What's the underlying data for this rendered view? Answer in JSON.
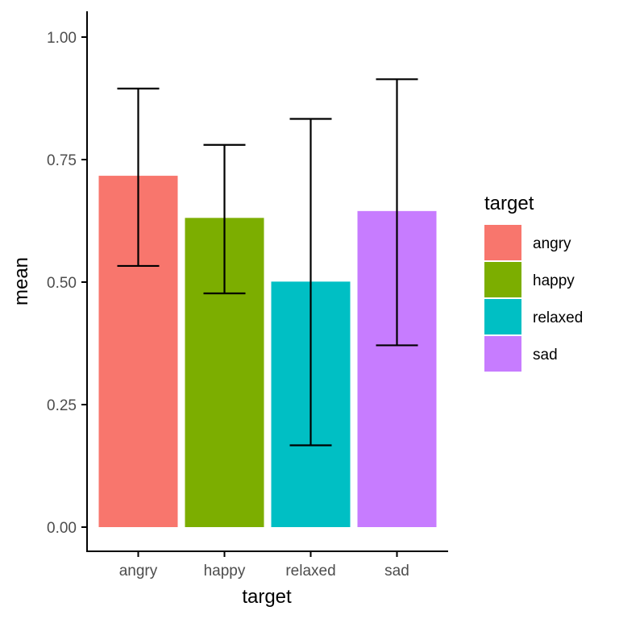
{
  "chart_data": {
    "type": "bar",
    "categories": [
      "angry",
      "happy",
      "relaxed",
      "sad"
    ],
    "values": [
      0.717,
      0.631,
      0.501,
      0.645
    ],
    "error_bars": {
      "lower": [
        0.533,
        0.477,
        0.167,
        0.371
      ],
      "upper": [
        0.895,
        0.78,
        0.833,
        0.914
      ]
    },
    "colors": [
      "#F8766D",
      "#7CAE00",
      "#00BFC4",
      "#C77CFF"
    ],
    "xlabel": "target",
    "ylabel": "mean",
    "ylim": [
      0,
      1.05
    ],
    "yticks": [
      0.0,
      0.25,
      0.5,
      0.75,
      1.0
    ],
    "ytick_labels": [
      "0.00",
      "0.25",
      "0.50",
      "0.75",
      "1.00"
    ],
    "grid": false,
    "legend": {
      "title": "target",
      "placement": "right",
      "entries": [
        "angry",
        "happy",
        "relaxed",
        "sad"
      ]
    }
  }
}
